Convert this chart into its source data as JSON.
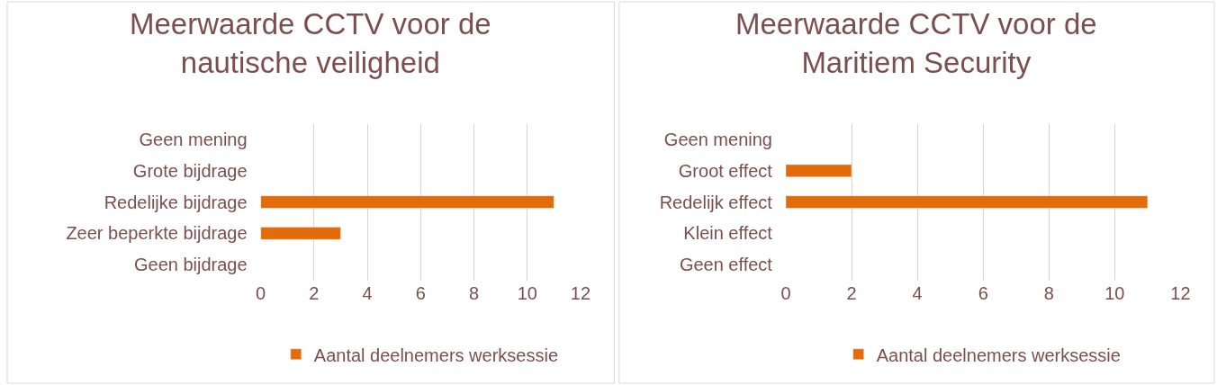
{
  "chart_data": [
    {
      "type": "bar",
      "orientation": "horizontal",
      "title": "Meerwaarde CCTV voor de nautische veiligheid",
      "categories": [
        "Geen mening",
        "Grote bijdrage",
        "Redelijke bijdrage",
        "Zeer beperkte bijdrage",
        "Geen bijdrage"
      ],
      "series": [
        {
          "name": "Aantal deelnemers werksessie",
          "color": "#e36c0a",
          "values": [
            null,
            null,
            11,
            3,
            null
          ]
        }
      ],
      "xlim": [
        0,
        12
      ],
      "xticks": [
        0,
        2,
        4,
        6,
        8,
        10,
        12
      ],
      "grid": "x",
      "legend": "bottom"
    },
    {
      "type": "bar",
      "orientation": "horizontal",
      "title": "Meerwaarde CCTV voor de Maritiem Security",
      "categories": [
        "Geen mening",
        "Groot effect",
        "Redelijk effect",
        "Klein effect",
        "Geen effect"
      ],
      "series": [
        {
          "name": "Aantal deelnemers werksessie",
          "color": "#e36c0a",
          "values": [
            null,
            2,
            11,
            null,
            null
          ]
        }
      ],
      "xlim": [
        0,
        12
      ],
      "xticks": [
        0,
        2,
        4,
        6,
        8,
        10,
        12
      ],
      "grid": "x",
      "legend": "bottom"
    }
  ]
}
